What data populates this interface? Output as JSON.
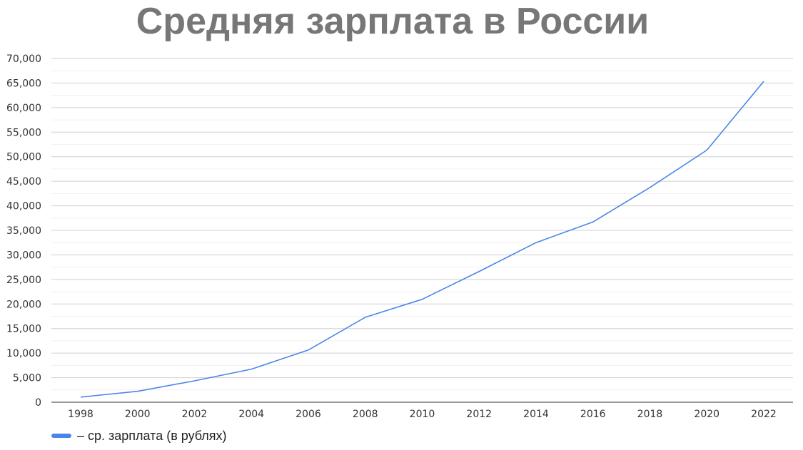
{
  "chart_data": {
    "type": "line",
    "title": "Средняя зарплата в России",
    "xlabel": "",
    "ylabel": "",
    "x": [
      "1998",
      "2000",
      "2002",
      "2004",
      "2006",
      "2008",
      "2010",
      "2012",
      "2014",
      "2016",
      "2018",
      "2020",
      "2022"
    ],
    "series": [
      {
        "name": "– ср. зарплата (в рублях)",
        "values": [
          1051,
          2223,
          4360,
          6739,
          10634,
          17290,
          20952,
          26629,
          32495,
          36709,
          43724,
          51344,
          65338
        ],
        "color": "#4a86e8"
      }
    ],
    "ylim": [
      0,
      70000
    ],
    "yticks": [
      "0",
      "5,000",
      "10,000",
      "15,000",
      "20,000",
      "25,000",
      "30,000",
      "35,000",
      "40,000",
      "45,000",
      "50,000",
      "55,000",
      "60,000",
      "65,000",
      "70,000"
    ],
    "grid": true,
    "minor_grid": true,
    "legend_position": "bottom-left"
  }
}
